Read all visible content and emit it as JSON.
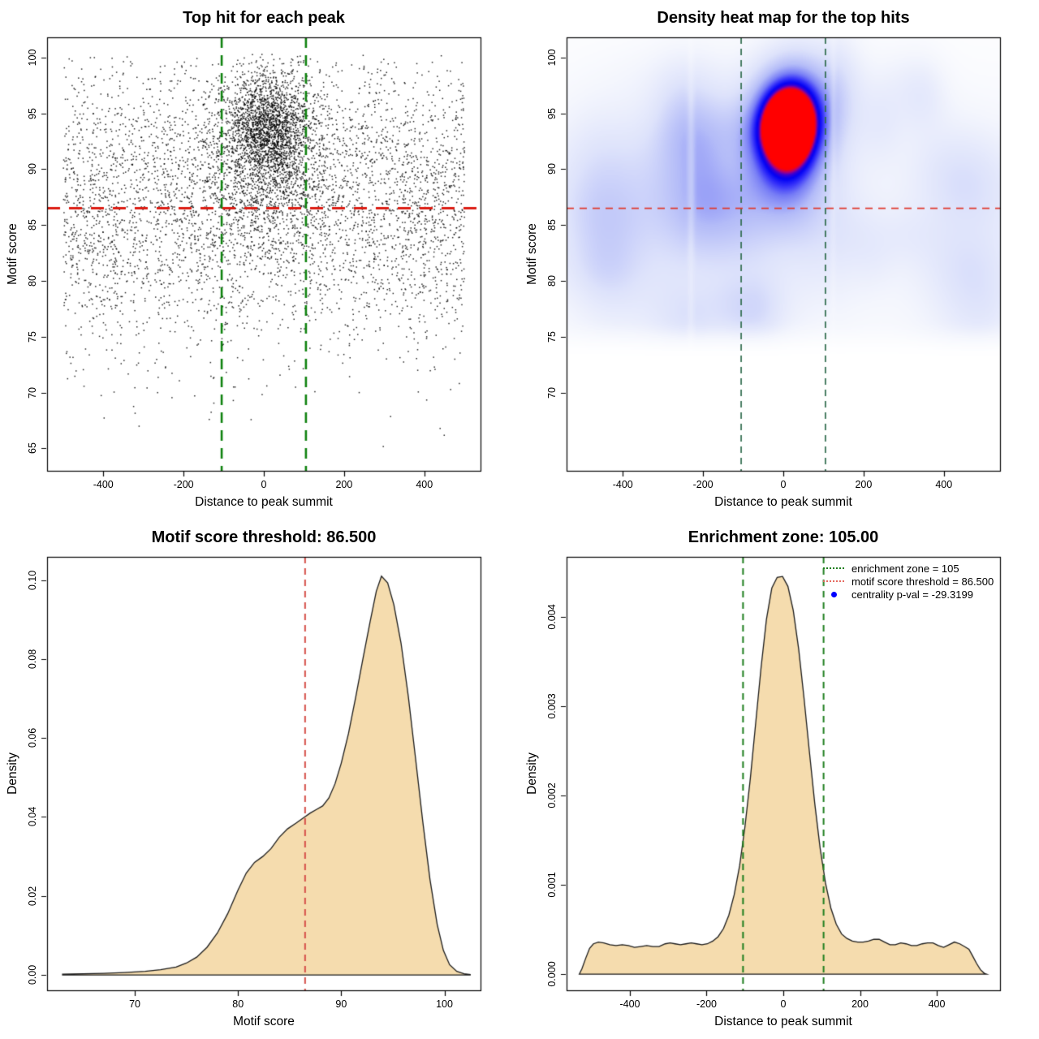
{
  "figure": {
    "background": "#ffffff"
  },
  "chart_data": [
    {
      "id": "top-hit-scatter",
      "type": "scatter",
      "title": "Top hit for each peak",
      "xlabel": "Distance to peak summit",
      "ylabel": "Motif score",
      "xlim": [
        -540,
        540
      ],
      "ylim": [
        63,
        101.8
      ],
      "grid": false,
      "xticks": [
        {
          "v": -400,
          "label": "-400"
        },
        {
          "v": -200,
          "label": "-200"
        },
        {
          "v": 0,
          "label": "0"
        },
        {
          "v": 200,
          "label": "200"
        },
        {
          "v": 400,
          "label": "400"
        }
      ],
      "yticks": [
        {
          "v": 65,
          "label": "65"
        },
        {
          "v": 70,
          "label": "70"
        },
        {
          "v": 75,
          "label": "75"
        },
        {
          "v": 80,
          "label": "80"
        },
        {
          "v": 85,
          "label": "85"
        },
        {
          "v": 90,
          "label": "90"
        },
        {
          "v": 95,
          "label": "95"
        },
        {
          "v": 100,
          "label": "100"
        }
      ],
      "point_color": "#000000",
      "point_size": 1.5,
      "point_alpha": 0.85,
      "points": {
        "seed": 1234,
        "x_range": [
          -512,
          512
        ],
        "groups": [
          {
            "name": "background",
            "n": 4300,
            "x": {
              "dist": "uniform",
              "min": -500,
              "max": 500
            },
            "y": {
              "dist": "normal",
              "mean": 87,
              "sd": 6.5
            },
            "y_range": [
              63.8,
              100.2
            ]
          },
          {
            "name": "central-cluster",
            "n": 1700,
            "x": {
              "dist": "normal",
              "mean": 12,
              "sd": 52
            },
            "y": {
              "dist": "normal",
              "mean": 93.8,
              "sd": 2.4
            },
            "y_range": [
              85,
              100.3
            ]
          },
          {
            "name": "cluster-lower-tail",
            "n": 600,
            "x": {
              "dist": "normal",
              "mean": 12,
              "sd": 58
            },
            "y": {
              "dist": "normal",
              "mean": 89,
              "sd": 3.5
            },
            "y_range": [
              80,
              100.3
            ]
          },
          {
            "name": "cluster-halo",
            "n": 400,
            "x": {
              "dist": "normal",
              "mean": 12,
              "sd": 115
            },
            "y": {
              "dist": "normal",
              "mean": 93,
              "sd": 3
            },
            "y_range": [
              84,
              100.3
            ]
          }
        ]
      },
      "lines": [
        {
          "orient": "v",
          "at": -105,
          "color": "#0f820f",
          "width": 2.6,
          "dash": [
            13,
            9
          ]
        },
        {
          "orient": "v",
          "at": 105,
          "color": "#0f820f",
          "width": 2.6,
          "dash": [
            13,
            9
          ]
        },
        {
          "orient": "h",
          "at": 86.5,
          "color": "#dc1c12",
          "width": 3,
          "dash": [
            16,
            11
          ]
        }
      ]
    },
    {
      "id": "density-heatmap",
      "type": "heatmap",
      "title": "Density heat map for the top hits",
      "xlabel": "Distance to peak summit",
      "ylabel": "Motif score",
      "xlim": [
        -540,
        540
      ],
      "ylim": [
        63,
        101.8
      ],
      "xticks": [
        {
          "v": -400,
          "label": "-400"
        },
        {
          "v": -200,
          "label": "-200"
        },
        {
          "v": 0,
          "label": "0"
        },
        {
          "v": 200,
          "label": "200"
        },
        {
          "v": 400,
          "label": "400"
        }
      ],
      "yticks": [
        {
          "v": 70,
          "label": "70"
        },
        {
          "v": 75,
          "label": "75"
        },
        {
          "v": 80,
          "label": "80"
        },
        {
          "v": 85,
          "label": "85"
        },
        {
          "v": 90,
          "label": "90"
        },
        {
          "v": 95,
          "label": "95"
        },
        {
          "v": 100,
          "label": "100"
        }
      ],
      "field": {
        "hotspots": [
          {
            "amp": 1.0,
            "x": 12,
            "sx": 55,
            "y": 93.9,
            "sy": 2.7
          },
          {
            "amp": 0.38,
            "x": 12,
            "sx": 62,
            "y": 90.5,
            "sy": 3.8
          },
          {
            "amp": 0.25,
            "x": 12,
            "sx": 75,
            "y": 96.8,
            "sy": 3.2
          },
          {
            "amp": 0.12,
            "x": 12,
            "sx": 90,
            "y": 87,
            "sy": 4.5
          }
        ],
        "wash": {
          "amp": 0.16,
          "y": 86,
          "sy": 9.5
        },
        "noise": {
          "seed": 77,
          "count": 48,
          "amp": [
            0.04,
            0.14
          ],
          "sx": [
            35,
            110
          ],
          "sy": [
            1.8,
            5
          ],
          "x": [
            -540,
            540
          ],
          "y": [
            76,
            99.5
          ]
        },
        "fade_below": [
          73,
          76.5
        ],
        "seams": [
          {
            "x": -230,
            "strength": 0.22,
            "sx": 6
          },
          {
            "x": 125,
            "strength": 0.18,
            "sx": 5
          }
        ],
        "scale_max": 1.25,
        "colormap": [
          [
            0,
            "#ffffff"
          ],
          [
            0.12,
            "#f4f6fd"
          ],
          [
            0.3,
            "#dee3fb"
          ],
          [
            0.5,
            "#b4bcf8"
          ],
          [
            0.65,
            "#787ef6"
          ],
          [
            0.76,
            "#3430fa"
          ],
          [
            0.85,
            "#0000f5"
          ],
          [
            0.91,
            "#3c00d2"
          ],
          [
            0.95,
            "#aa0082"
          ],
          [
            1,
            "#ff0000"
          ]
        ]
      },
      "lines": [
        {
          "orient": "v",
          "at": -105,
          "color": "#2e6b4c",
          "width": 1.7,
          "dash": [
            8,
            6
          ]
        },
        {
          "orient": "v",
          "at": 105,
          "color": "#2e6b4c",
          "width": 1.7,
          "dash": [
            8,
            6
          ]
        },
        {
          "orient": "h",
          "at": 86.5,
          "color": "#e0392e",
          "width": 1.7,
          "dash": [
            9,
            7
          ]
        }
      ]
    },
    {
      "id": "motif-score-density",
      "type": "area",
      "title": "Motif score threshold: 86.500",
      "xlabel": "Motif score",
      "ylabel": "Density",
      "threshold": 86.5,
      "xlim": [
        61.5,
        103.5
      ],
      "ylim": [
        -0.0039,
        0.1059
      ],
      "xticks": [
        {
          "v": 70,
          "label": "70"
        },
        {
          "v": 80,
          "label": "80"
        },
        {
          "v": 90,
          "label": "90"
        },
        {
          "v": 100,
          "label": "100"
        }
      ],
      "yticks": [
        {
          "v": 0,
          "label": "0.00"
        },
        {
          "v": 0.02,
          "label": "0.02"
        },
        {
          "v": 0.04,
          "label": "0.04"
        },
        {
          "v": 0.06,
          "label": "0.06"
        },
        {
          "v": 0.08,
          "label": "0.08"
        },
        {
          "v": 0.1,
          "label": "0.10"
        }
      ],
      "fill": "#f5dcae",
      "stroke": "#1a1a1a",
      "curve": [
        [
          63,
          0.0002
        ],
        [
          65,
          0.0003
        ],
        [
          67,
          0.0004
        ],
        [
          69,
          0.0006
        ],
        [
          71,
          0.0009
        ],
        [
          72.5,
          0.0013
        ],
        [
          74,
          0.002
        ],
        [
          75,
          0.003
        ],
        [
          76,
          0.0045
        ],
        [
          77,
          0.007
        ],
        [
          78,
          0.0106
        ],
        [
          79,
          0.0155
        ],
        [
          80,
          0.0215
        ],
        [
          80.8,
          0.0258
        ],
        [
          81.6,
          0.0285
        ],
        [
          82.4,
          0.03
        ],
        [
          83.2,
          0.032
        ],
        [
          84,
          0.0349
        ],
        [
          84.8,
          0.037
        ],
        [
          85.6,
          0.0384
        ],
        [
          86.4,
          0.0399
        ],
        [
          87,
          0.041
        ],
        [
          87.6,
          0.0419
        ],
        [
          88.2,
          0.0428
        ],
        [
          88.8,
          0.0448
        ],
        [
          89.4,
          0.0484
        ],
        [
          90,
          0.0536
        ],
        [
          90.7,
          0.0611
        ],
        [
          91.4,
          0.0703
        ],
        [
          92.1,
          0.08
        ],
        [
          92.8,
          0.0895
        ],
        [
          93.4,
          0.0972
        ],
        [
          93.9,
          0.101
        ],
        [
          94.5,
          0.0993
        ],
        [
          95.1,
          0.0938
        ],
        [
          95.8,
          0.084
        ],
        [
          96.5,
          0.0706
        ],
        [
          97.2,
          0.0549
        ],
        [
          97.9,
          0.0389
        ],
        [
          98.6,
          0.0242
        ],
        [
          99.3,
          0.0128
        ],
        [
          99.9,
          0.0062
        ],
        [
          100.5,
          0.0026
        ],
        [
          101.2,
          0.0009
        ],
        [
          101.9,
          0.0003
        ],
        [
          102.5,
          0.0001
        ]
      ],
      "lines": [
        {
          "orient": "v",
          "at": 86.5,
          "color": "#d6504a",
          "width": 2,
          "dash": [
            8,
            6
          ]
        }
      ]
    },
    {
      "id": "summit-distance-density",
      "type": "area",
      "title": "Enrichment zone: 105.00",
      "xlabel": "Distance to peak summit",
      "ylabel": "Density",
      "enrichment_zone": 105,
      "xlim": [
        -565,
        565
      ],
      "ylim": [
        -0.00018,
        0.00467
      ],
      "xticks": [
        {
          "v": -400,
          "label": "-400"
        },
        {
          "v": -200,
          "label": "-200"
        },
        {
          "v": 0,
          "label": "0"
        },
        {
          "v": 200,
          "label": "200"
        },
        {
          "v": 400,
          "label": "400"
        }
      ],
      "yticks": [
        {
          "v": 0,
          "label": "0.000"
        },
        {
          "v": 0.001,
          "label": "0.001"
        },
        {
          "v": 0.002,
          "label": "0.002"
        },
        {
          "v": 0.003,
          "label": "0.003"
        },
        {
          "v": 0.004,
          "label": "0.004"
        }
      ],
      "fill": "#f5dcae",
      "stroke": "#1a1a1a",
      "curve": [
        [
          -532,
          0
        ],
        [
          -525,
          6e-05
        ],
        [
          -515,
          0.00018
        ],
        [
          -505,
          0.00029
        ],
        [
          -495,
          0.00034
        ],
        [
          -482,
          0.00036
        ],
        [
          -468,
          0.00035
        ],
        [
          -452,
          0.00033
        ],
        [
          -436,
          0.00032
        ],
        [
          -420,
          0.00033
        ],
        [
          -404,
          0.00032
        ],
        [
          -388,
          0.0003
        ],
        [
          -372,
          0.00031
        ],
        [
          -356,
          0.00032
        ],
        [
          -340,
          0.00031
        ],
        [
          -324,
          0.00031
        ],
        [
          -308,
          0.00034
        ],
        [
          -295,
          0.00035
        ],
        [
          -282,
          0.00034
        ],
        [
          -268,
          0.00033
        ],
        [
          -254,
          0.00034
        ],
        [
          -240,
          0.00035
        ],
        [
          -226,
          0.00034
        ],
        [
          -212,
          0.00033
        ],
        [
          -198,
          0.00034
        ],
        [
          -184,
          0.00037
        ],
        [
          -170,
          0.00042
        ],
        [
          -156,
          0.00051
        ],
        [
          -142,
          0.00066
        ],
        [
          -128,
          0.00089
        ],
        [
          -114,
          0.00121
        ],
        [
          -100,
          0.00165
        ],
        [
          -86,
          0.00219
        ],
        [
          -72,
          0.00281
        ],
        [
          -58,
          0.00343
        ],
        [
          -44,
          0.00397
        ],
        [
          -30,
          0.00432
        ],
        [
          -16,
          0.00444
        ],
        [
          -2,
          0.00445
        ],
        [
          12,
          0.00434
        ],
        [
          26,
          0.00407
        ],
        [
          40,
          0.00364
        ],
        [
          54,
          0.00309
        ],
        [
          68,
          0.00249
        ],
        [
          82,
          0.00191
        ],
        [
          96,
          0.00141
        ],
        [
          110,
          0.00102
        ],
        [
          124,
          0.00074
        ],
        [
          138,
          0.00056
        ],
        [
          152,
          0.00045
        ],
        [
          166,
          0.0004
        ],
        [
          180,
          0.00037
        ],
        [
          194,
          0.00036
        ],
        [
          208,
          0.00036
        ],
        [
          222,
          0.00037
        ],
        [
          236,
          0.00039
        ],
        [
          250,
          0.00039
        ],
        [
          264,
          0.00036
        ],
        [
          278,
          0.00033
        ],
        [
          292,
          0.00033
        ],
        [
          306,
          0.00035
        ],
        [
          320,
          0.00034
        ],
        [
          334,
          0.00032
        ],
        [
          348,
          0.00032
        ],
        [
          362,
          0.00034
        ],
        [
          376,
          0.00035
        ],
        [
          390,
          0.00035
        ],
        [
          404,
          0.00032
        ],
        [
          418,
          0.0003
        ],
        [
          432,
          0.00033
        ],
        [
          446,
          0.00036
        ],
        [
          460,
          0.00034
        ],
        [
          472,
          0.00031
        ],
        [
          484,
          0.00028
        ],
        [
          494,
          0.0002
        ],
        [
          504,
          0.00012
        ],
        [
          514,
          5e-05
        ],
        [
          524,
          1e-05
        ],
        [
          530,
          0
        ]
      ],
      "lines": [
        {
          "orient": "v",
          "at": -105,
          "color": "#1e7e1e",
          "width": 2,
          "dash": [
            8,
            6
          ]
        },
        {
          "orient": "v",
          "at": 105,
          "color": "#1e7e1e",
          "width": 2,
          "dash": [
            8,
            6
          ]
        }
      ],
      "legend": {
        "items": [
          {
            "swatch": "dotted-line",
            "color": "#1e7e1e",
            "label": "enrichment zone = 105"
          },
          {
            "swatch": "dotted-line",
            "color": "#e4685e",
            "label": "motif score threshold = 86.500"
          },
          {
            "swatch": "dot",
            "color": "#0000ff",
            "label": "centrality p-val = -29.3199"
          }
        ]
      }
    }
  ]
}
